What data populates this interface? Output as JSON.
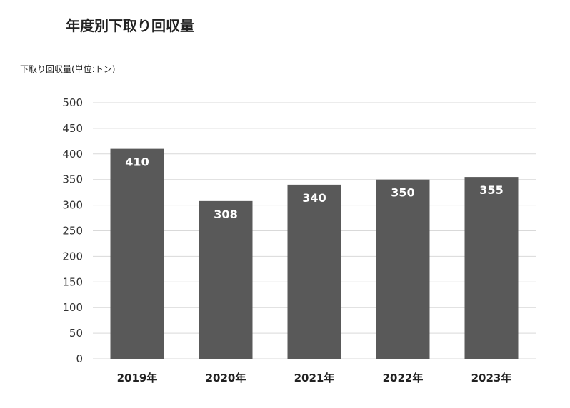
{
  "chart_data": {
    "type": "bar",
    "title": "年度別下取り回収量",
    "ylabel": "下取り回収量(単位:トン)",
    "xlabel": "",
    "categories": [
      "2019年",
      "2020年",
      "2021年",
      "2022年",
      "2023年"
    ],
    "values": [
      410,
      308,
      340,
      350,
      355
    ],
    "data_labels": [
      "410",
      "308",
      "340",
      "350",
      "355"
    ],
    "ylim": [
      0,
      500
    ],
    "yticks": [
      0,
      50,
      100,
      150,
      200,
      250,
      300,
      350,
      400,
      450,
      500
    ],
    "grid": true,
    "legend": "none",
    "bar_color": "#595959",
    "grid_color": "#d9d9d9"
  }
}
